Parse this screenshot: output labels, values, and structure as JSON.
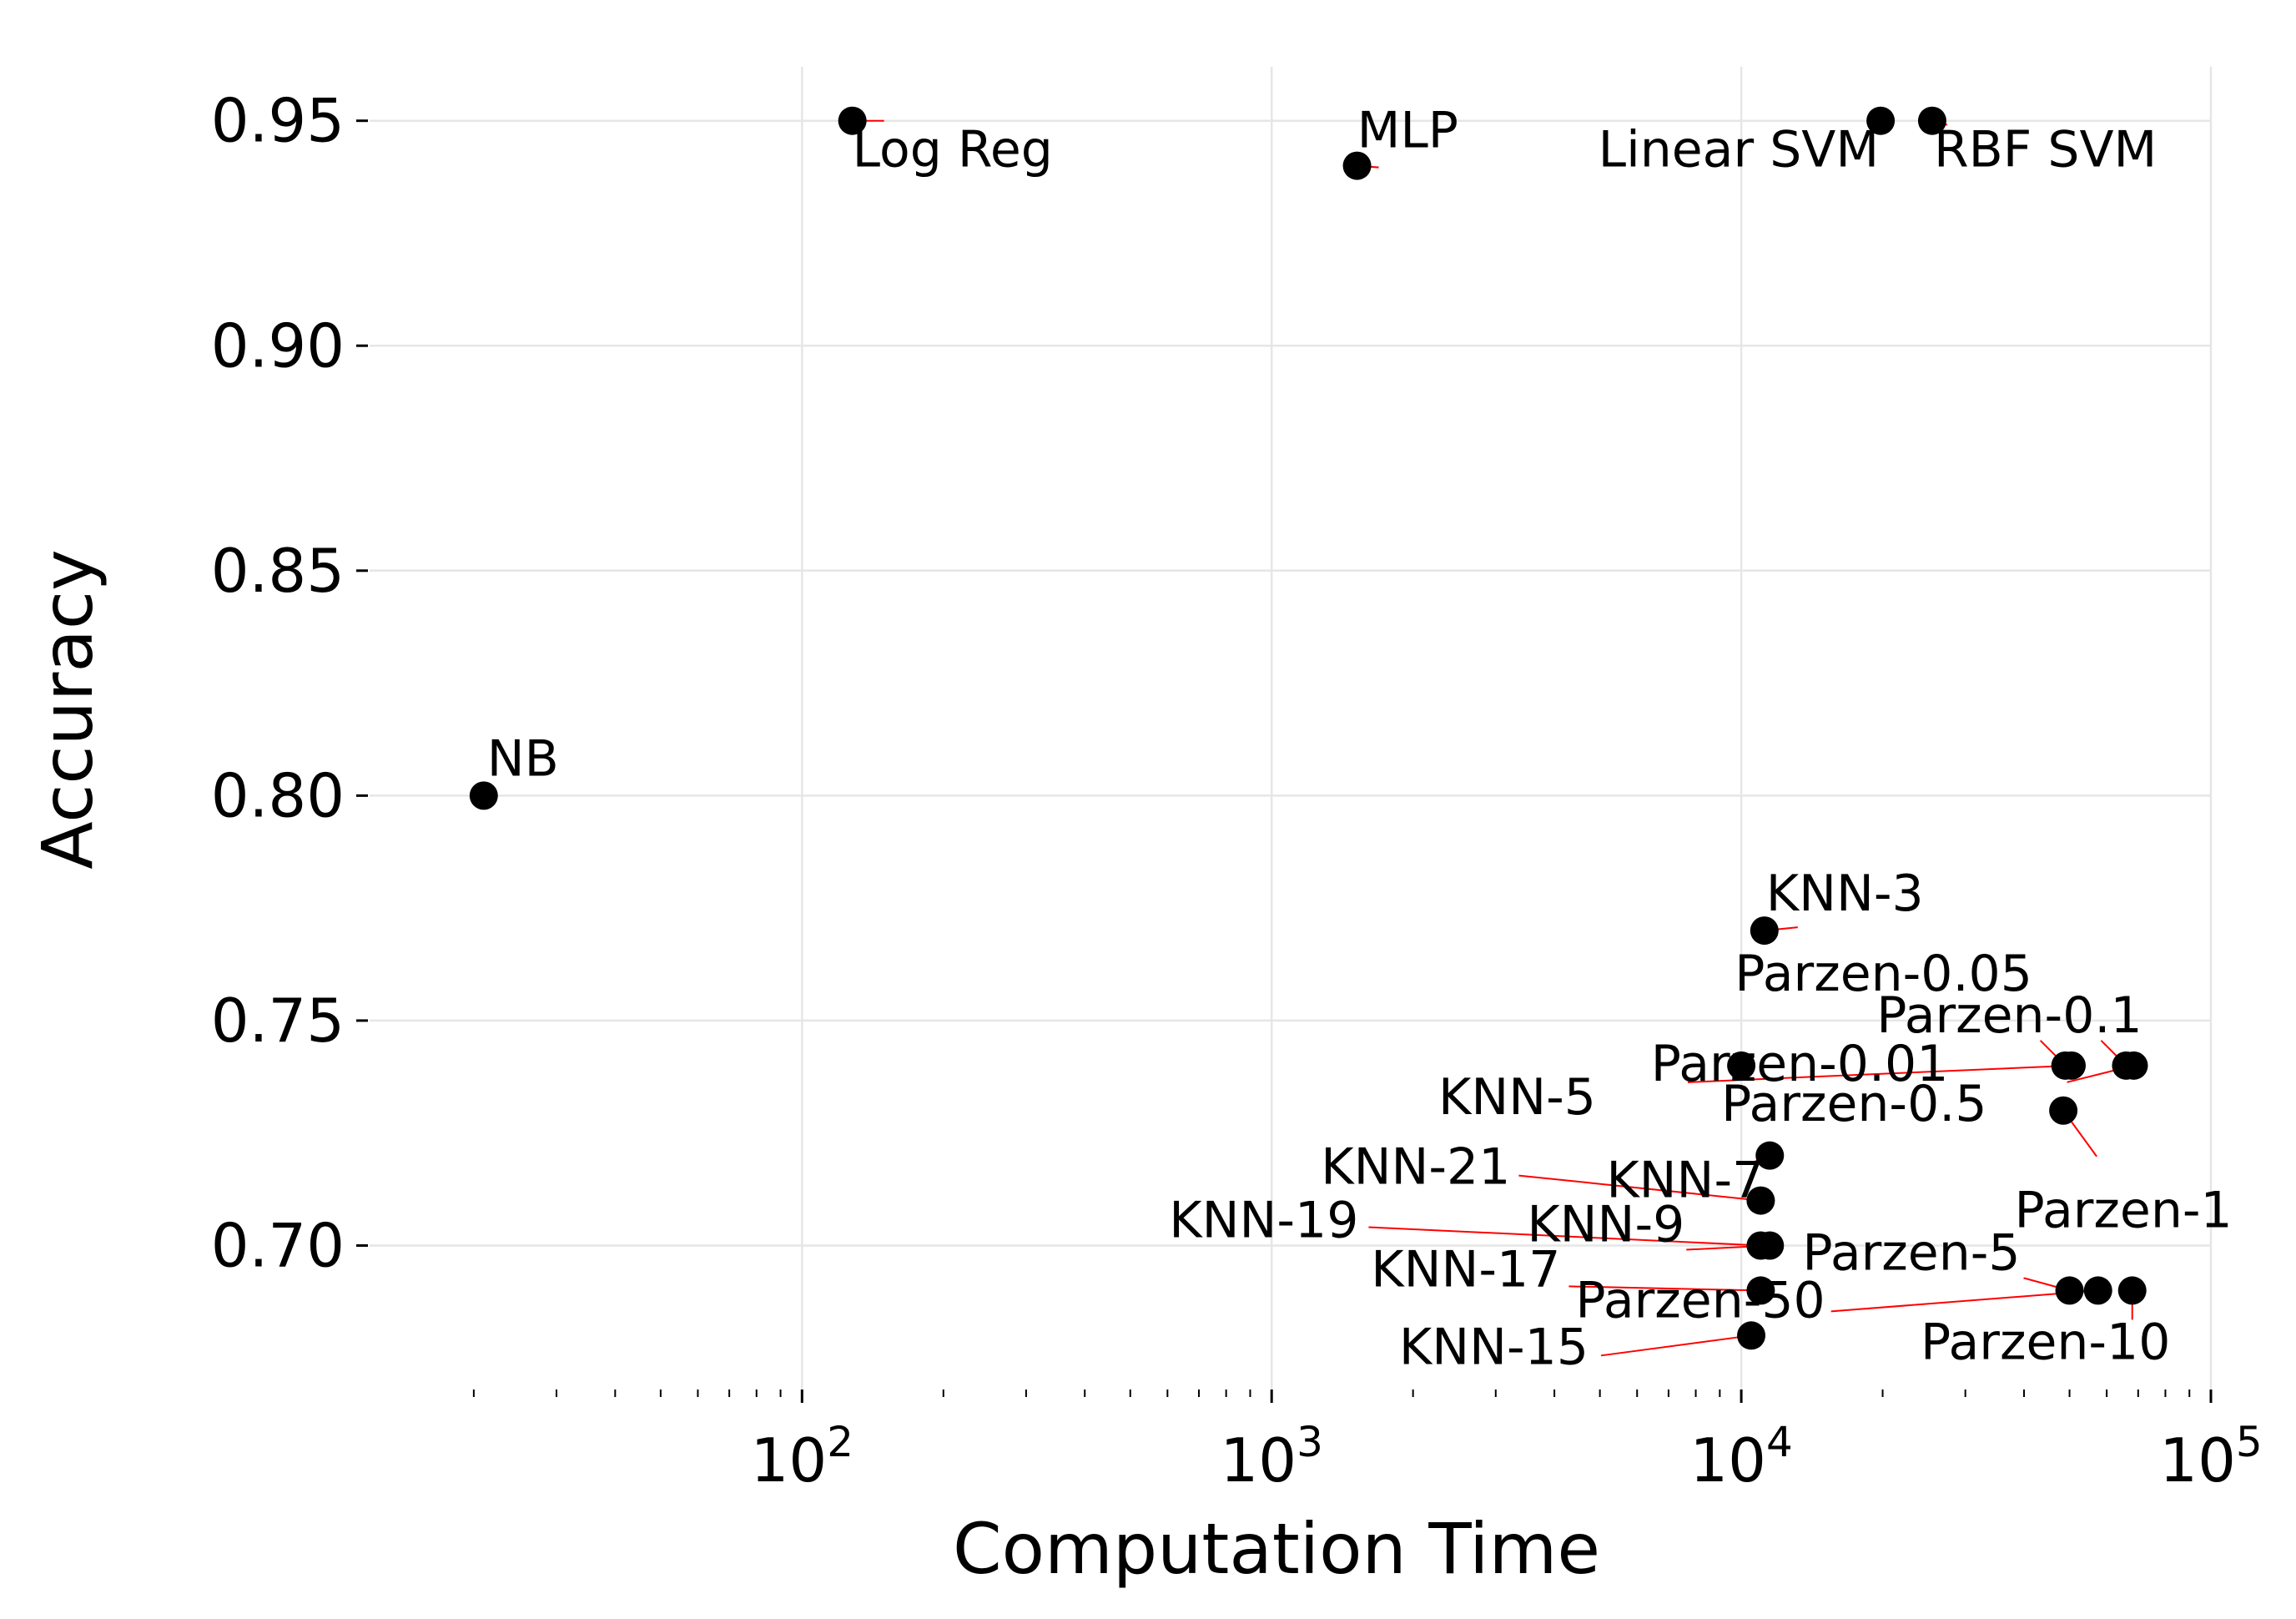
{
  "chart_data": {
    "type": "scatter",
    "title": "",
    "xlabel": "Computation Time",
    "ylabel": "Accuracy",
    "xscale": "log",
    "xlim": [
      12,
      100000
    ],
    "ylim": [
      0.668,
      0.962
    ],
    "grid": true,
    "marker_color": "#000000",
    "annotation_arrow_color": "#ff0000",
    "grid_color": "#e6e6e6",
    "x_major_ticks": [
      {
        "value": 100,
        "base": "10",
        "exp": "2"
      },
      {
        "value": 1000,
        "base": "10",
        "exp": "3"
      },
      {
        "value": 10000,
        "base": "10",
        "exp": "4"
      },
      {
        "value": 100000,
        "base": "10",
        "exp": "5"
      }
    ],
    "y_ticks": [
      {
        "value": 0.7,
        "label": "0.70"
      },
      {
        "value": 0.75,
        "label": "0.75"
      },
      {
        "value": 0.8,
        "label": "0.80"
      },
      {
        "value": 0.85,
        "label": "0.85"
      },
      {
        "value": 0.9,
        "label": "0.90"
      },
      {
        "value": 0.95,
        "label": "0.95"
      }
    ],
    "points": [
      {
        "label": "NB",
        "x": 21,
        "y": 0.8
      },
      {
        "label": "Log Reg",
        "x": 128,
        "y": 0.95
      },
      {
        "label": "MLP",
        "x": 1520,
        "y": 0.94
      },
      {
        "label": "Linear SVM",
        "x": 19800,
        "y": 0.95
      },
      {
        "label": "RBF SVM",
        "x": 25500,
        "y": 0.95
      },
      {
        "label": "KNN-3",
        "x": 11200,
        "y": 0.77
      },
      {
        "label": "Parzen-0.01",
        "x": 10000,
        "y": 0.74
      },
      {
        "label": "Parzen-0.05",
        "x": 49000,
        "y": 0.74
      },
      {
        "label": "Parzen-0.1",
        "x": 66000,
        "y": 0.74
      },
      {
        "label": "KNN-5",
        "x": 50500,
        "y": 0.74
      },
      {
        "label": "Parzen-0.5",
        "x": 68500,
        "y": 0.74
      },
      {
        "label": "Parzen-1",
        "x": 48500,
        "y": 0.73
      },
      {
        "label": "KNN-7",
        "x": 11500,
        "y": 0.72
      },
      {
        "label": "KNN-21",
        "x": 11000,
        "y": 0.71
      },
      {
        "label": "KNN-19",
        "x": 11000,
        "y": 0.7
      },
      {
        "label": "KNN-9",
        "x": 11500,
        "y": 0.7
      },
      {
        "label": "KNN-17",
        "x": 11000,
        "y": 0.69
      },
      {
        "label": "Parzen-5",
        "x": 50000,
        "y": 0.69
      },
      {
        "label": "Parzen-50",
        "x": 57500,
        "y": 0.69
      },
      {
        "label": "Parzen-10",
        "x": 68000,
        "y": 0.69
      },
      {
        "label": "KNN-15",
        "x": 10500,
        "y": 0.68
      }
    ]
  }
}
